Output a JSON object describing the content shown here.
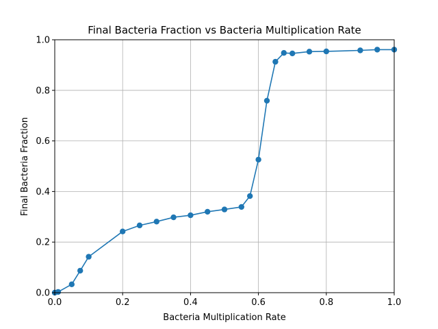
{
  "chart_data": {
    "type": "line",
    "title": "Final Bacteria Fraction vs Bacteria Multiplication Rate",
    "xlabel": "Bacteria Multiplication Rate",
    "ylabel": "Final Bacteria Fraction",
    "xlim": [
      0,
      1
    ],
    "ylim": [
      0,
      1
    ],
    "xticks": [
      "0.0",
      "0.2",
      "0.4",
      "0.6",
      "0.8",
      "1.0"
    ],
    "yticks": [
      "0.0",
      "0.2",
      "0.4",
      "0.6",
      "0.8",
      "1.0"
    ],
    "grid": true,
    "legend": "none",
    "series": [
      {
        "color": "#1f77b4",
        "marker": "circle",
        "points": [
          {
            "x": 0.0,
            "y": 0.0
          },
          {
            "x": 0.01,
            "y": 0.003
          },
          {
            "x": 0.05,
            "y": 0.033
          },
          {
            "x": 0.075,
            "y": 0.087
          },
          {
            "x": 0.1,
            "y": 0.142
          },
          {
            "x": 0.2,
            "y": 0.242
          },
          {
            "x": 0.25,
            "y": 0.266
          },
          {
            "x": 0.3,
            "y": 0.281
          },
          {
            "x": 0.35,
            "y": 0.298
          },
          {
            "x": 0.4,
            "y": 0.306
          },
          {
            "x": 0.45,
            "y": 0.32
          },
          {
            "x": 0.5,
            "y": 0.329
          },
          {
            "x": 0.55,
            "y": 0.339
          },
          {
            "x": 0.575,
            "y": 0.382
          },
          {
            "x": 0.6,
            "y": 0.526
          },
          {
            "x": 0.625,
            "y": 0.759
          },
          {
            "x": 0.65,
            "y": 0.913
          },
          {
            "x": 0.675,
            "y": 0.948
          },
          {
            "x": 0.7,
            "y": 0.946
          },
          {
            "x": 0.75,
            "y": 0.953
          },
          {
            "x": 0.8,
            "y": 0.954
          },
          {
            "x": 0.9,
            "y": 0.958
          },
          {
            "x": 0.95,
            "y": 0.961
          },
          {
            "x": 1.0,
            "y": 0.961
          }
        ]
      }
    ]
  }
}
